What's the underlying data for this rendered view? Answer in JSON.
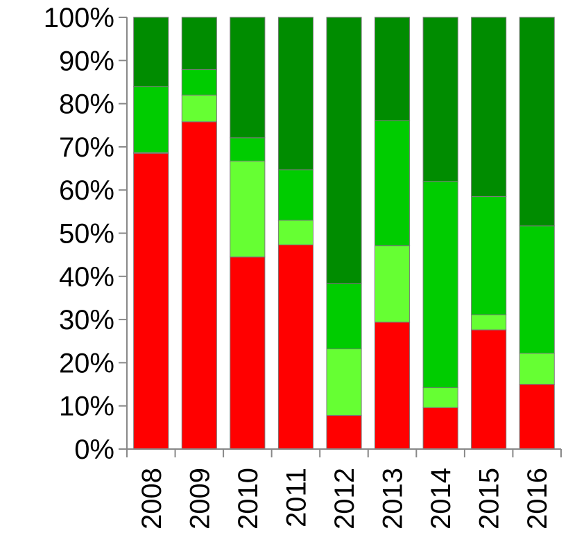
{
  "chart_data": {
    "type": "bar",
    "stacked": true,
    "percent_stacked": true,
    "categories": [
      "2008",
      "2009",
      "2010",
      "2011",
      "2012",
      "2013",
      "2014",
      "2015",
      "2016"
    ],
    "series": [
      {
        "color": "#ff0000",
        "values": [
          68.5,
          75.8,
          44.5,
          47.3,
          7.8,
          29.4,
          9.6,
          27.6,
          15.0
        ]
      },
      {
        "color": "#66ff33",
        "values": [
          0.2,
          6.2,
          22.2,
          5.7,
          15.4,
          17.7,
          4.6,
          3.5,
          7.2
        ]
      },
      {
        "color": "#00cc00",
        "values": [
          15.3,
          5.9,
          5.4,
          11.7,
          15.1,
          29.0,
          47.8,
          27.4,
          29.5
        ]
      },
      {
        "color": "#008c00",
        "values": [
          16.0,
          12.1,
          27.9,
          35.3,
          61.7,
          23.9,
          38.0,
          41.5,
          48.3
        ]
      }
    ],
    "yticks": [
      "0%",
      "10%",
      "20%",
      "30%",
      "40%",
      "50%",
      "60%",
      "70%",
      "80%",
      "90%",
      "100%"
    ],
    "ylim": [
      0,
      100
    ],
    "grid": false,
    "legend": "none"
  }
}
